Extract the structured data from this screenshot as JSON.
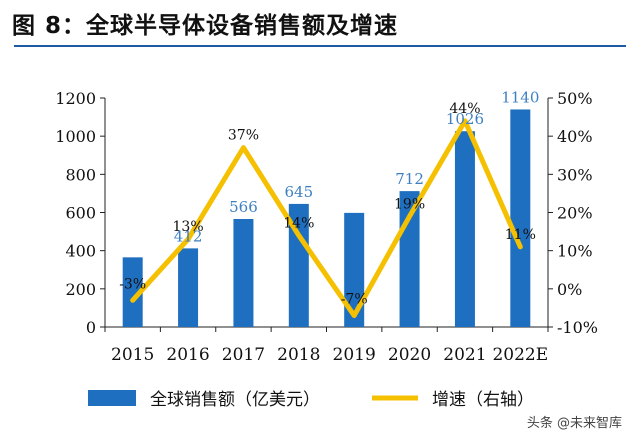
{
  "title": "图 8：全球半导体设备销售额及增速",
  "watermark": "头条 @未来智库",
  "chart_data": {
    "type": "bar",
    "categories": [
      "2015",
      "2016",
      "2017",
      "2018",
      "2019",
      "2020",
      "2021",
      "2022E"
    ],
    "series": [
      {
        "name": "全球销售额（亿美元）",
        "type": "bar",
        "axis": "left",
        "values": [
          365,
          412,
          566,
          645,
          598,
          712,
          1026,
          1140
        ],
        "data_labels": [
          "",
          "412",
          "566",
          "645",
          "",
          "712",
          "1026",
          "1140"
        ],
        "color": "#1f6fc0"
      },
      {
        "name": "增速（右轴）",
        "type": "line",
        "axis": "right",
        "values": [
          -3,
          13,
          37,
          14,
          -7,
          19,
          44,
          11
        ],
        "data_labels": [
          "-3%",
          "13%",
          "37%",
          "14%",
          "-7%",
          "19%",
          "44%",
          "11%"
        ],
        "color": "#f5c000"
      }
    ],
    "y_left": {
      "ylim": [
        0,
        1200
      ],
      "ticks": [
        "0",
        "200",
        "400",
        "600",
        "800",
        "1000",
        "1200"
      ]
    },
    "y_right": {
      "ylim": [
        -10,
        50
      ],
      "ticks": [
        "-10%",
        "0%",
        "10%",
        "20%",
        "30%",
        "40%",
        "50%"
      ]
    },
    "legend_position": "bottom",
    "grid": false
  }
}
